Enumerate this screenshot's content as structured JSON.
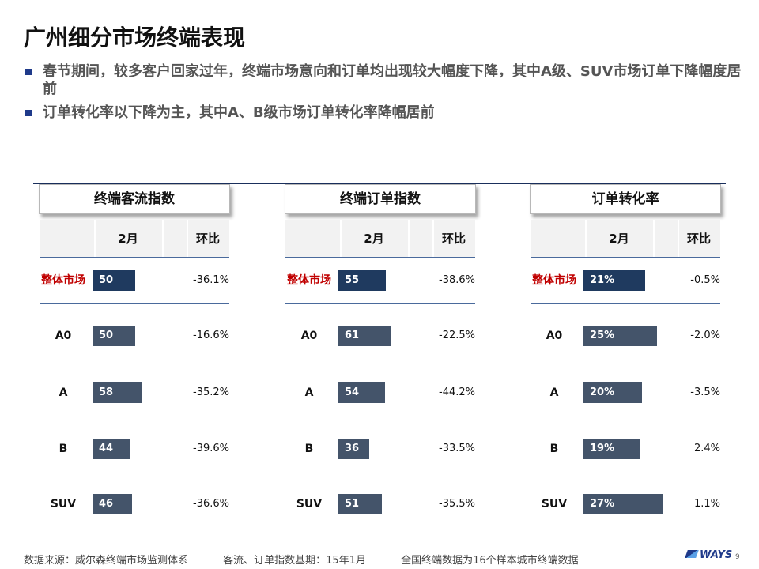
{
  "title": "广州细分市场终端表现",
  "bullets": [
    "春节期间，较多客户回家过年，终端市场意向和订单均出现较大幅度下降，其中A级、SUV市场订单下降幅度居前",
    "订单转化率以下降为主，其中A、B级市场订单转化率降幅居前"
  ],
  "table": {
    "col_month": "2月",
    "col_mom": "环比",
    "rows": [
      "整体市场",
      "A0",
      "A",
      "B",
      "SUV"
    ]
  },
  "chart_data": [
    {
      "type": "bar",
      "title": "终端客流指数",
      "categories": [
        "整体市场",
        "A0",
        "A",
        "B",
        "SUV"
      ],
      "values": [
        50,
        50,
        58,
        44,
        46
      ],
      "value_labels": [
        "50",
        "50",
        "58",
        "44",
        "46"
      ],
      "mom": [
        "-36.1%",
        "-16.6%",
        "-35.2%",
        "-39.6%",
        "-36.6%"
      ],
      "xlim": [
        0,
        120
      ]
    },
    {
      "type": "bar",
      "title": "终端订单指数",
      "categories": [
        "整体市场",
        "A0",
        "A",
        "B",
        "SUV"
      ],
      "values": [
        55,
        61,
        54,
        36,
        51
      ],
      "value_labels": [
        "55",
        "61",
        "54",
        "36",
        "51"
      ],
      "mom": [
        "-38.6%",
        "-22.5%",
        "-44.2%",
        "-33.5%",
        "-35.5%"
      ],
      "xlim": [
        0,
        120
      ]
    },
    {
      "type": "bar",
      "title": "订单转化率",
      "categories": [
        "整体市场",
        "A0",
        "A",
        "B",
        "SUV"
      ],
      "values": [
        21,
        25,
        20,
        19,
        27
      ],
      "value_labels": [
        "21%",
        "25%",
        "20%",
        "19%",
        "27%"
      ],
      "mom": [
        "-0.5%",
        "-2.0%",
        "-3.5%",
        "2.4%",
        "1.1%"
      ],
      "xlim": [
        0,
        35
      ]
    }
  ],
  "footer": {
    "source": "数据来源：威尔森终端市场监测体系",
    "base": "客流、订单指数基期：15年1月",
    "note": "全国终端数据为16个样本城市终端数据"
  },
  "logo": "WAYS",
  "page_number": "9"
}
